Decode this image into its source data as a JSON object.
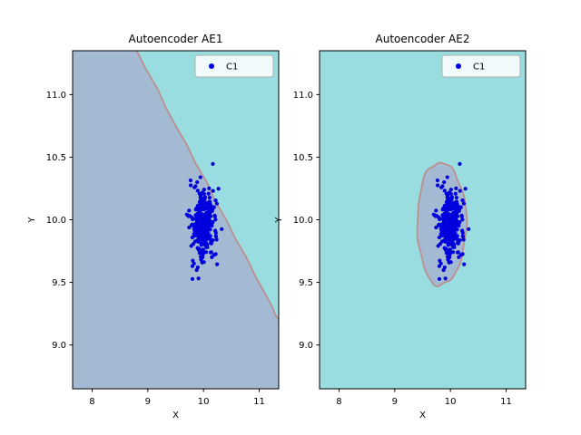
{
  "figure": {
    "background": "#ffffff"
  },
  "chart_data": [
    {
      "type": "scatter",
      "title": "Autoencoder AE1",
      "xlabel": "X",
      "ylabel": "Y",
      "xlim": [
        7.65,
        11.35
      ],
      "ylim": [
        8.65,
        11.35
      ],
      "xticks": [
        8,
        9,
        10,
        11
      ],
      "xtick_labels": [
        "8",
        "9",
        "10",
        "11"
      ],
      "yticks": [
        9.0,
        9.5,
        10.0,
        10.5,
        11.0
      ],
      "ytick_labels": [
        "9.0",
        "9.5",
        "10.0",
        "10.5",
        "11.0"
      ],
      "grid": false,
      "legend": {
        "label": "C1",
        "position": "upper right"
      },
      "colors": {
        "inside_region": "#a4bad2",
        "outside_region": "#9adde0",
        "boundary": "#bc8f8f",
        "points": "#0000dd",
        "spine": "#000000",
        "legend_border": "#b0b0b0"
      },
      "decision_region": {
        "shape": "halfplane",
        "boundary_points": [
          [
            8.8,
            11.35
          ],
          [
            8.97,
            11.2
          ],
          [
            9.17,
            11.05
          ],
          [
            9.32,
            10.9
          ],
          [
            9.5,
            10.75
          ],
          [
            9.7,
            10.6
          ],
          [
            9.86,
            10.45
          ],
          [
            10.06,
            10.3
          ],
          [
            10.21,
            10.15
          ],
          [
            10.41,
            10.0
          ],
          [
            10.57,
            9.85
          ],
          [
            10.77,
            9.7
          ],
          [
            10.93,
            9.55
          ],
          [
            11.12,
            9.4
          ],
          [
            11.24,
            9.3
          ],
          [
            11.28,
            9.25
          ],
          [
            11.35,
            9.2
          ]
        ]
      },
      "cluster": {
        "label": "C1",
        "center": [
          9.98,
          9.98
        ],
        "std": [
          0.12,
          0.14
        ],
        "n": 300,
        "seed": 12345
      }
    },
    {
      "type": "scatter",
      "title": "Autoencoder AE2",
      "xlabel": "X",
      "ylabel": "Y",
      "xlim": [
        7.65,
        11.35
      ],
      "ylim": [
        8.65,
        11.35
      ],
      "xticks": [
        8,
        9,
        10,
        11
      ],
      "xtick_labels": [
        "8",
        "9",
        "10",
        "11"
      ],
      "yticks": [
        9.0,
        9.5,
        10.0,
        10.5,
        11.0
      ],
      "ytick_labels": [
        "9.0",
        "9.5",
        "10.0",
        "10.5",
        "11.0"
      ],
      "grid": false,
      "legend": {
        "label": "C1",
        "position": "upper right"
      },
      "colors": {
        "inside_region": "#a4bad2",
        "outside_region": "#9adde0",
        "boundary": "#bc8f8f",
        "points": "#0000dd",
        "spine": "#000000",
        "legend_border": "#b0b0b0"
      },
      "decision_region": {
        "shape": "ellipse",
        "center": [
          9.84,
          9.97
        ],
        "rx": 0.44,
        "ry": 0.49
      },
      "cluster": {
        "label": "C1",
        "center": [
          9.98,
          9.98
        ],
        "std": [
          0.12,
          0.14
        ],
        "n": 300,
        "seed": 12345
      }
    }
  ]
}
